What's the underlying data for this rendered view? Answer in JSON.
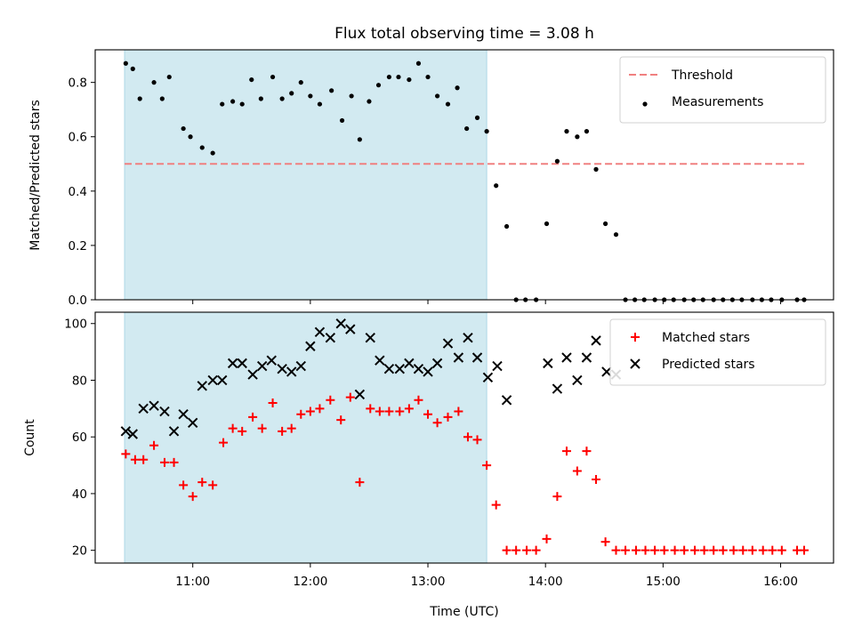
{
  "chart_data": {
    "title": "Flux total observing time = 3.08 h",
    "xlabel": "Time (UTC)",
    "x_unit": "hours UTC",
    "xlim": [
      10.17,
      16.45
    ],
    "xticks": [
      11,
      12,
      13,
      14,
      15,
      16
    ],
    "xtick_labels": [
      "11:00",
      "12:00",
      "13:00",
      "14:00",
      "15:00",
      "16:00"
    ],
    "shaded_span": {
      "start": 10.42,
      "end": 13.5,
      "color": "#add8e6"
    },
    "panels": [
      {
        "type": "scatter",
        "ylabel": "Matched/Predicted stars",
        "ylim": [
          0,
          0.92
        ],
        "yticks": [
          0.0,
          0.2,
          0.4,
          0.6,
          0.8
        ],
        "ytick_labels": [
          "0.0",
          "0.2",
          "0.4",
          "0.6",
          "0.8"
        ],
        "legend_position": "upper right",
        "threshold": {
          "name": "Threshold",
          "value": 0.5,
          "x_start": 10.42,
          "x_end": 16.2,
          "color": "#f08080",
          "style": "dashed"
        },
        "series": [
          {
            "name": "Measurements",
            "marker": "dot",
            "color": "#000000",
            "x": [
              10.43,
              10.49,
              10.55,
              10.67,
              10.74,
              10.8,
              10.92,
              10.98,
              11.08,
              11.17,
              11.25,
              11.34,
              11.42,
              11.5,
              11.58,
              11.68,
              11.76,
              11.84,
              11.92,
              12.0,
              12.08,
              12.18,
              12.27,
              12.35,
              12.42,
              12.5,
              12.58,
              12.67,
              12.75,
              12.84,
              12.92,
              13.0,
              13.08,
              13.17,
              13.25,
              13.33,
              13.42,
              13.5,
              13.58,
              13.67,
              13.75,
              13.83,
              13.92,
              14.01,
              14.1,
              14.18,
              14.27,
              14.35,
              14.43,
              14.51,
              14.6,
              14.68,
              14.76,
              14.84,
              14.93,
              15.01,
              15.09,
              15.18,
              15.26,
              15.34,
              15.43,
              15.51,
              15.59,
              15.67,
              15.76,
              15.84,
              15.92,
              16.01,
              16.14,
              16.2
            ],
            "y": [
              0.87,
              0.85,
              0.74,
              0.8,
              0.74,
              0.82,
              0.63,
              0.6,
              0.56,
              0.54,
              0.72,
              0.73,
              0.72,
              0.81,
              0.74,
              0.82,
              0.74,
              0.76,
              0.8,
              0.75,
              0.72,
              0.77,
              0.66,
              0.75,
              0.59,
              0.73,
              0.79,
              0.82,
              0.82,
              0.81,
              0.87,
              0.82,
              0.75,
              0.72,
              0.78,
              0.63,
              0.67,
              0.62,
              0.42,
              0.27,
              0.0,
              0.0,
              0.0,
              0.28,
              0.51,
              0.62,
              0.6,
              0.62,
              0.48,
              0.28,
              0.24,
              0.0,
              0.0,
              0.0,
              0.0,
              0.0,
              0.0,
              0.0,
              0.0,
              0.0,
              0.0,
              0.0,
              0.0,
              0.0,
              0.0,
              0.0,
              0.0,
              0.0,
              0.0,
              0.0
            ]
          }
        ]
      },
      {
        "type": "scatter",
        "ylabel": "Count",
        "ylim": [
          15.5,
          104
        ],
        "yticks": [
          20,
          40,
          60,
          80,
          100
        ],
        "ytick_labels": [
          "20",
          "40",
          "60",
          "80",
          "100"
        ],
        "legend_position": "upper right",
        "series": [
          {
            "name": "Matched stars",
            "marker": "plus",
            "color": "#ff0000",
            "x": [
              10.43,
              10.51,
              10.58,
              10.67,
              10.76,
              10.84,
              10.92,
              11.0,
              11.08,
              11.17,
              11.26,
              11.34,
              11.42,
              11.51,
              11.59,
              11.68,
              11.76,
              11.84,
              11.92,
              12.0,
              12.08,
              12.17,
              12.26,
              12.34,
              12.42,
              12.51,
              12.59,
              12.67,
              12.76,
              12.84,
              12.92,
              13.0,
              13.08,
              13.17,
              13.26,
              13.34,
              13.42,
              13.5,
              13.58,
              13.67,
              13.75,
              13.84,
              13.92,
              14.01,
              14.1,
              14.18,
              14.27,
              14.35,
              14.43,
              14.51,
              14.6,
              14.68,
              14.77,
              14.85,
              14.93,
              15.01,
              15.1,
              15.18,
              15.27,
              15.35,
              15.43,
              15.51,
              15.6,
              15.68,
              15.76,
              15.85,
              15.93,
              16.01,
              16.14,
              16.2
            ],
            "y": [
              54,
              52,
              52,
              57,
              51,
              51,
              43,
              39,
              44,
              43,
              58,
              63,
              62,
              67,
              63,
              72,
              62,
              63,
              68,
              69,
              70,
              73,
              66,
              74,
              44,
              70,
              69,
              69,
              69,
              70,
              73,
              68,
              65,
              67,
              69,
              60,
              59,
              50,
              36,
              20,
              20,
              20,
              20,
              24,
              39,
              55,
              48,
              55,
              45,
              23,
              20,
              20,
              20,
              20,
              20,
              20,
              20,
              20,
              20,
              20,
              20,
              20,
              20,
              20,
              20,
              20,
              20,
              20,
              20,
              20
            ]
          },
          {
            "name": "Predicted stars",
            "marker": "x",
            "color": "#000000",
            "x": [
              10.43,
              10.49,
              10.58,
              10.67,
              10.76,
              10.84,
              10.92,
              11.0,
              11.08,
              11.17,
              11.25,
              11.34,
              11.42,
              11.51,
              11.59,
              11.67,
              11.76,
              11.84,
              11.92,
              12.0,
              12.08,
              12.17,
              12.26,
              12.34,
              12.42,
              12.51,
              12.59,
              12.67,
              12.76,
              12.84,
              12.92,
              13.0,
              13.08,
              13.17,
              13.26,
              13.34,
              13.42,
              13.51,
              13.59,
              13.67,
              14.02,
              14.1,
              14.18,
              14.27,
              14.35,
              14.43,
              14.52,
              14.6
            ],
            "y": [
              62,
              61,
              70,
              71,
              69,
              62,
              68,
              65,
              78,
              80,
              80,
              86,
              86,
              82,
              85,
              87,
              84,
              83,
              85,
              92,
              97,
              95,
              100,
              98,
              75,
              95,
              87,
              84,
              84,
              86,
              84,
              83,
              86,
              93,
              88,
              95,
              88,
              81,
              85,
              73,
              86,
              77,
              88,
              80,
              88,
              94,
              83,
              82
            ]
          }
        ]
      }
    ]
  }
}
